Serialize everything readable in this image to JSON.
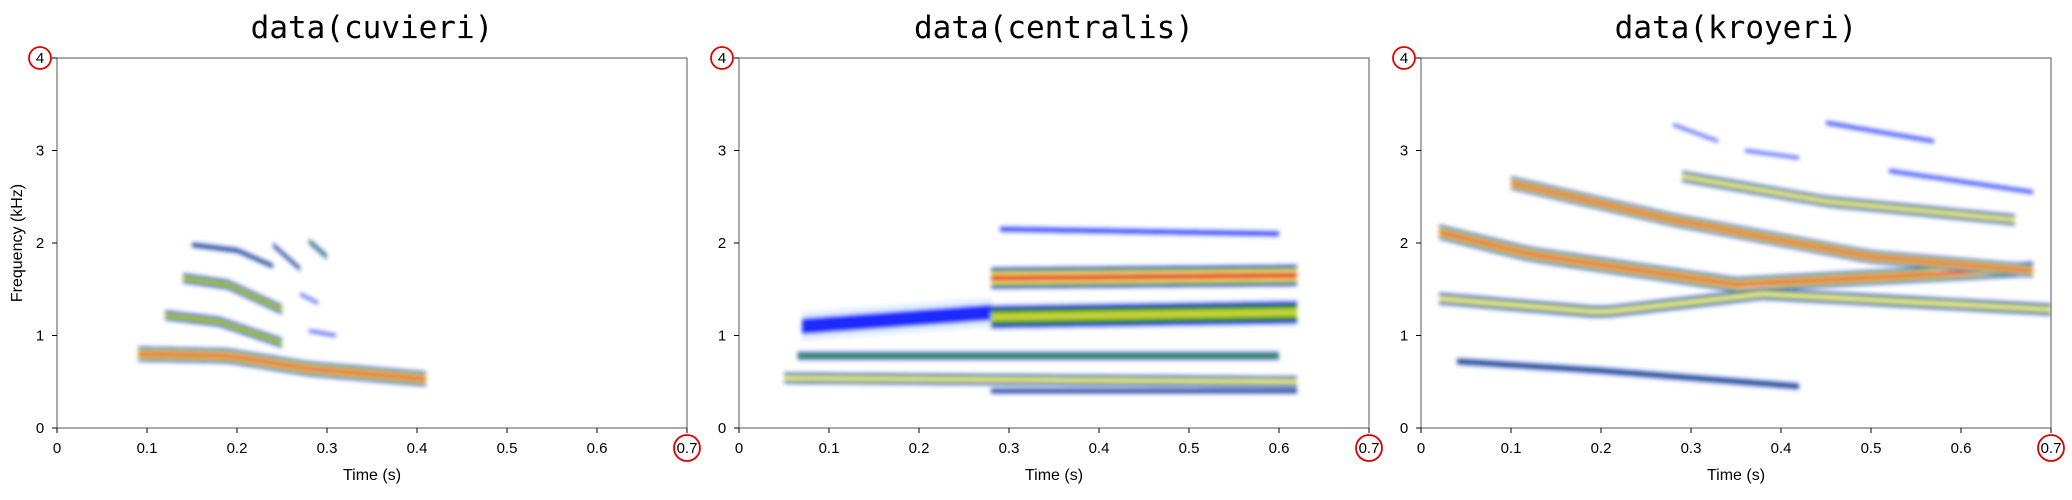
{
  "highlight_color": "#e00000",
  "frame_color": "#555555",
  "colormap": [
    "#d6e8ff",
    "#1a2bff",
    "#0f5a16",
    "#3ea51a",
    "#c8d43a",
    "#f7f0b0",
    "#f6a640",
    "#e53a1a"
  ],
  "chart_data": [
    {
      "type": "heatmap",
      "title": "data(cuvieri)",
      "xlabel": "Time (s)",
      "ylabel": "Frequency (kHz)",
      "xlim": [
        0,
        0.7
      ],
      "ylim": [
        0,
        4
      ],
      "xticks": [
        "0",
        "0.1",
        "0.2",
        "0.3",
        "0.4",
        "0.5",
        "0.6",
        "0.7"
      ],
      "yticks": [
        "0",
        "1",
        "2",
        "3",
        "4"
      ],
      "highlighted_ticks": {
        "x": "0.7",
        "y": "4"
      },
      "bands": [
        {
          "t": [
            0.09,
            0.19,
            0.28,
            0.41
          ],
          "f": [
            0.8,
            0.78,
            0.64,
            0.53
          ],
          "w": 0.18,
          "peak": 1.0
        },
        {
          "t": [
            0.12,
            0.18,
            0.25
          ],
          "f": [
            1.22,
            1.15,
            0.92
          ],
          "w": 0.13,
          "peak": 0.55
        },
        {
          "t": [
            0.14,
            0.19,
            0.25
          ],
          "f": [
            1.62,
            1.55,
            1.28
          ],
          "w": 0.13,
          "peak": 0.55
        },
        {
          "t": [
            0.15,
            0.2,
            0.24
          ],
          "f": [
            1.98,
            1.92,
            1.75
          ],
          "w": 0.08,
          "peak": 0.3
        },
        {
          "t": [
            0.24,
            0.27
          ],
          "f": [
            1.98,
            1.72
          ],
          "w": 0.08,
          "peak": 0.3
        },
        {
          "t": [
            0.28,
            0.3
          ],
          "f": [
            2.02,
            1.85
          ],
          "w": 0.08,
          "peak": 0.4
        },
        {
          "t": [
            0.27,
            0.29
          ],
          "f": [
            1.45,
            1.35
          ],
          "w": 0.06,
          "peak": 0.2
        },
        {
          "t": [
            0.28,
            0.31
          ],
          "f": [
            1.05,
            1.0
          ],
          "w": 0.06,
          "peak": 0.15
        }
      ]
    },
    {
      "type": "heatmap",
      "title": "data(centralis)",
      "xlabel": "Time (s)",
      "ylabel": "",
      "xlim": [
        0,
        0.7
      ],
      "ylim": [
        0,
        4
      ],
      "xticks": [
        "0",
        "0.1",
        "0.2",
        "0.3",
        "0.4",
        "0.5",
        "0.6",
        "0.7"
      ],
      "yticks": [
        "0",
        "1",
        "2",
        "3",
        "4"
      ],
      "highlighted_ticks": {
        "x": "0.7",
        "y": "4"
      },
      "bands": [
        {
          "t": [
            0.05,
            0.62
          ],
          "f": [
            0.54,
            0.5
          ],
          "w": 0.14,
          "peak": 0.75
        },
        {
          "t": [
            0.065,
            0.6
          ],
          "f": [
            0.78,
            0.78
          ],
          "w": 0.11,
          "peak": 0.4
        },
        {
          "t": [
            0.07,
            0.28
          ],
          "f": [
            1.1,
            1.25
          ],
          "w": 0.32,
          "peak": 0.18
        },
        {
          "t": [
            0.28,
            0.62
          ],
          "f": [
            1.62,
            1.65
          ],
          "w": 0.26,
          "peak": 0.95
        },
        {
          "t": [
            0.28,
            0.62
          ],
          "f": [
            1.2,
            1.25
          ],
          "w": 0.3,
          "peak": 0.6
        },
        {
          "t": [
            0.28,
            0.62
          ],
          "f": [
            0.4,
            0.4
          ],
          "w": 0.08,
          "peak": 0.3
        },
        {
          "t": [
            0.29,
            0.6
          ],
          "f": [
            2.15,
            2.1
          ],
          "w": 0.1,
          "peak": 0.18
        }
      ]
    },
    {
      "type": "heatmap",
      "title": "data(kroyeri)",
      "xlabel": "Time (s)",
      "ylabel": "",
      "xlim": [
        0,
        0.7
      ],
      "ylim": [
        0,
        4
      ],
      "xticks": [
        "0",
        "0.1",
        "0.2",
        "0.3",
        "0.4",
        "0.5",
        "0.6",
        "0.7"
      ],
      "yticks": [
        "0",
        "1",
        "2",
        "3",
        "4"
      ],
      "highlighted_ticks": {
        "x": "0.7",
        "y": "4"
      },
      "bands": [
        {
          "t": [
            0.02,
            0.12,
            0.35,
            0.68
          ],
          "f": [
            2.12,
            1.88,
            1.55,
            1.72
          ],
          "w": 0.18,
          "peak": 0.95
        },
        {
          "t": [
            0.1,
            0.28,
            0.5,
            0.68
          ],
          "f": [
            2.65,
            2.25,
            1.85,
            1.7
          ],
          "w": 0.16,
          "peak": 1.0
        },
        {
          "t": [
            0.29,
            0.45,
            0.66
          ],
          "f": [
            2.72,
            2.45,
            2.25
          ],
          "w": 0.14,
          "peak": 0.65
        },
        {
          "t": [
            0.02,
            0.2,
            0.38,
            0.7
          ],
          "f": [
            1.4,
            1.25,
            1.45,
            1.28
          ],
          "w": 0.15,
          "peak": 0.7
        },
        {
          "t": [
            0.04,
            0.2,
            0.42
          ],
          "f": [
            0.72,
            0.62,
            0.45
          ],
          "w": 0.1,
          "peak": 0.35
        },
        {
          "t": [
            0.45,
            0.57
          ],
          "f": [
            3.3,
            3.1
          ],
          "w": 0.08,
          "peak": 0.2
        },
        {
          "t": [
            0.52,
            0.68
          ],
          "f": [
            2.78,
            2.55
          ],
          "w": 0.08,
          "peak": 0.2
        },
        {
          "t": [
            0.28,
            0.33
          ],
          "f": [
            3.28,
            3.1
          ],
          "w": 0.06,
          "peak": 0.15
        },
        {
          "t": [
            0.36,
            0.42
          ],
          "f": [
            3.0,
            2.92
          ],
          "w": 0.06,
          "peak": 0.15
        }
      ]
    }
  ]
}
